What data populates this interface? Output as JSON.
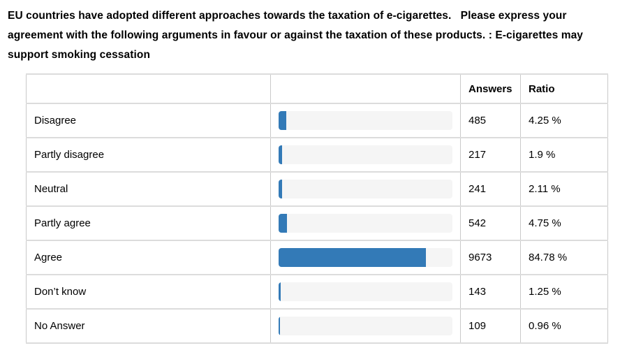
{
  "title": {
    "text": "EU countries have adopted different approaches towards the taxation of e-cigarettes.   Please express your agreement with the following arguments in favour or against the taxation of these products. : E-cigarettes may support smoking cessation"
  },
  "table": {
    "headers": {
      "label": "",
      "bar": "",
      "answers": "Answers",
      "ratio": "Ratio"
    },
    "rows": [
      {
        "label": "Disagree",
        "answers": "485",
        "ratio": "4.25 %",
        "percent": 4.25
      },
      {
        "label": "Partly disagree",
        "answers": "217",
        "ratio": "1.9 %",
        "percent": 1.9
      },
      {
        "label": "Neutral",
        "answers": "241",
        "ratio": "2.11 %",
        "percent": 2.11
      },
      {
        "label": "Partly agree",
        "answers": "542",
        "ratio": "4.75 %",
        "percent": 4.75
      },
      {
        "label": "Agree",
        "answers": "9673",
        "ratio": "84.78 %",
        "percent": 84.78
      },
      {
        "label": "Don’t know",
        "answers": "143",
        "ratio": "1.25 %",
        "percent": 1.25
      },
      {
        "label": "No Answer",
        "answers": "109",
        "ratio": "0.96 %",
        "percent": 0.96
      }
    ]
  },
  "colors": {
    "bar_fill": "#337ab7",
    "bar_track": "#f5f5f5",
    "border_horizontal": "#dcdcdc",
    "border_vertical": "#c9c9c9",
    "text": "#000000",
    "background": "#ffffff"
  },
  "chart_data": {
    "type": "bar",
    "orientation": "horizontal",
    "title": "EU countries have adopted different approaches towards the taxation of e-cigarettes. Please express your agreement with the following arguments in favour or against the taxation of these products. : E-cigarettes may support smoking cessation",
    "categories": [
      "Disagree",
      "Partly disagree",
      "Neutral",
      "Partly agree",
      "Agree",
      "Don’t know",
      "No Answer"
    ],
    "series": [
      {
        "name": "Answers",
        "values": [
          485,
          217,
          241,
          542,
          9673,
          143,
          109
        ]
      },
      {
        "name": "Ratio (%)",
        "values": [
          4.25,
          1.9,
          2.11,
          4.75,
          84.78,
          1.25,
          0.96
        ]
      }
    ],
    "column_headers": [
      "",
      "",
      "Answers",
      "Ratio"
    ],
    "xlim": [
      0,
      100
    ],
    "grid": false,
    "legend_position": "none"
  }
}
